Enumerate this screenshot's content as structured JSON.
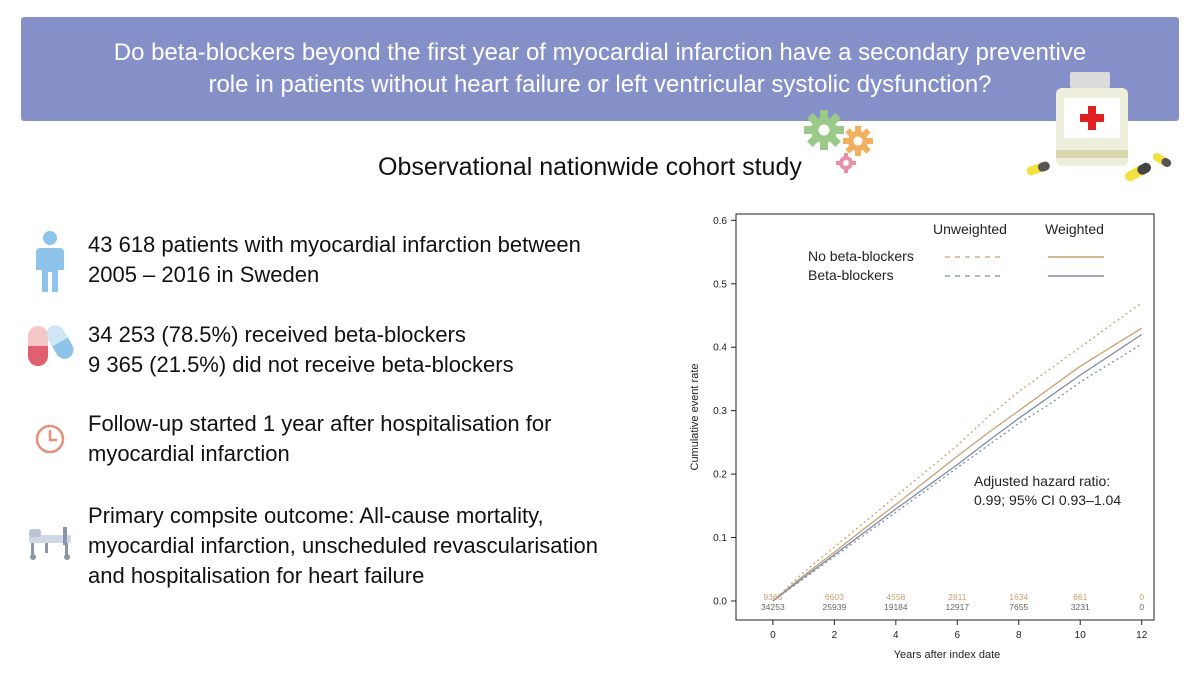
{
  "header": {
    "question_line1": "Do beta-blockers beyond the first year of myocardial infarction have a secondary preventive",
    "question_line2": "role in patients without heart failure or left ventricular systolic dysfunction?"
  },
  "study_type": "Observational nationwide cohort study",
  "findings": [
    {
      "icon": "person-icon",
      "lines": [
        "43 618 patients with myocardial infarction between",
        "2005 – 2016 in Sweden"
      ]
    },
    {
      "icon": "pills-icon",
      "lines": [
        "34 253 (78.5%) received beta-blockers",
        "9 365 (21.5%) did not receive beta-blockers"
      ]
    },
    {
      "icon": "clock-icon",
      "lines": [
        "Follow-up started 1 year after hospitalisation for",
        "myocardial infarction"
      ]
    },
    {
      "icon": "hospital-bed-icon",
      "lines": [
        "Primary compsite outcome: All-cause mortality,",
        "myocardial infarction, unscheduled revascularisation",
        "and hospitalisation for heart failure"
      ]
    }
  ],
  "colors": {
    "banner": "#8590c8",
    "no_beta_blockers": "#c9a070",
    "beta_blockers": "#7f8ea6"
  },
  "chart_data": {
    "type": "line",
    "xlabel": "Years after index date",
    "ylabel": "Cumulative event rate",
    "xlim": [
      -1.2,
      12.4
    ],
    "ylim": [
      -0.03,
      0.61
    ],
    "xticks": [
      0,
      2,
      4,
      6,
      8,
      10,
      12
    ],
    "yticks": [
      0.0,
      0.1,
      0.2,
      0.3,
      0.4,
      0.5,
      0.6
    ],
    "ytick_labels": [
      "0.0",
      "0.1",
      "0.2",
      "0.3",
      "0.4",
      "0.5",
      "0.6"
    ],
    "legend": {
      "placement": "top-right",
      "col_unweighted": "Unweighted",
      "col_weighted": "Weighted",
      "row_no_bb": "No beta-blockers",
      "row_bb": "Beta-blockers"
    },
    "annotation": {
      "line1": "Adjusted hazard ratio:",
      "line2": "0.99; 95% CI 0.93–1.04"
    },
    "risk_table": {
      "x": [
        0,
        2,
        4,
        6,
        8,
        10,
        12
      ],
      "no_beta_blockers": [
        "9365",
        "6603",
        "4558",
        "2811",
        "1634",
        "661",
        "0"
      ],
      "beta_blockers": [
        "34253",
        "25939",
        "19184",
        "12917",
        "7655",
        "3231",
        "0"
      ]
    },
    "series": [
      {
        "name": "No beta-blockers",
        "weighting": "Unweighted",
        "style": "dashed",
        "color": "#c9a070",
        "x": [
          0,
          1,
          2,
          3,
          4,
          5,
          6,
          7,
          8,
          9,
          10,
          11,
          12
        ],
        "y": [
          0,
          0.045,
          0.085,
          0.125,
          0.165,
          0.205,
          0.245,
          0.29,
          0.33,
          0.365,
          0.4,
          0.435,
          0.47
        ]
      },
      {
        "name": "Beta-blockers",
        "weighting": "Unweighted",
        "style": "dashed",
        "color": "#7f8ea6",
        "x": [
          0,
          1,
          2,
          3,
          4,
          5,
          6,
          7,
          8,
          9,
          10,
          11,
          12
        ],
        "y": [
          0,
          0.035,
          0.07,
          0.105,
          0.14,
          0.175,
          0.21,
          0.245,
          0.28,
          0.31,
          0.345,
          0.375,
          0.405
        ]
      },
      {
        "name": "No beta-blockers",
        "weighting": "Weighted",
        "style": "solid",
        "color": "#c9a070",
        "x": [
          0,
          1,
          2,
          3,
          4,
          5,
          6,
          7,
          8,
          9,
          10,
          11,
          12
        ],
        "y": [
          0,
          0.04,
          0.077,
          0.115,
          0.152,
          0.19,
          0.228,
          0.265,
          0.3,
          0.335,
          0.37,
          0.4,
          0.43
        ]
      },
      {
        "name": "Beta-blockers",
        "weighting": "Weighted",
        "style": "solid",
        "color": "#7f8ea6",
        "x": [
          0,
          1,
          2,
          3,
          4,
          5,
          6,
          7,
          8,
          9,
          10,
          11,
          12
        ],
        "y": [
          0,
          0.037,
          0.073,
          0.109,
          0.145,
          0.18,
          0.215,
          0.252,
          0.288,
          0.322,
          0.356,
          0.388,
          0.42
        ]
      }
    ]
  }
}
